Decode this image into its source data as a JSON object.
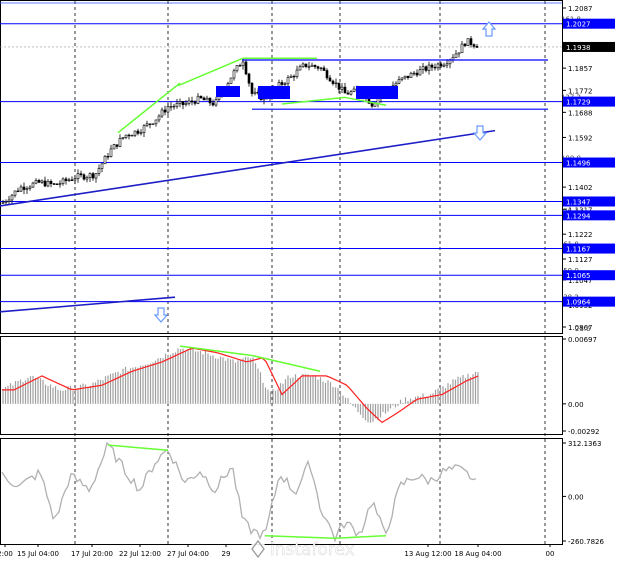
{
  "watermark": "instaforex",
  "chart_data": [
    {
      "type": "candlestick",
      "panel": "price",
      "ylim": [
        1.0867,
        1.2087
      ],
      "y_ticks": [
        "1.2087",
        "1.1938",
        "1.1857",
        "1.1772",
        "1.1688",
        "1.1592",
        "1.1497",
        "1.1402",
        "1.1317",
        "1.1222",
        "1.1127",
        "1.1047",
        "1.0952",
        "1.0867"
      ],
      "current_price": "1.1938",
      "horizontal_levels": [
        {
          "value": 1.2027,
          "label": "1.2027",
          "fib": "161.8"
        },
        {
          "value": 1.1729,
          "label": "1.1729",
          "fib": "127.2"
        },
        {
          "value": 1.1496,
          "label": "1.1496",
          "fib": "100.0"
        },
        {
          "value": 1.1347,
          "label": "1.1347",
          "fib": ""
        },
        {
          "value": 1.1294,
          "label": "1.1294",
          "fib": "76.4"
        },
        {
          "value": 1.1167,
          "label": "1.1167",
          "fib": "61.8"
        },
        {
          "value": 1.1065,
          "label": "1.1065",
          "fib": "50.0"
        },
        {
          "value": 1.0964,
          "label": "1.0964",
          "fib": "38.2"
        }
      ],
      "partial_fib_label": "23.6",
      "colors": {
        "level_line": "#0000ff",
        "trend": "#1e1ec8",
        "divergence": "#66ff33",
        "arrow": "#6699ff",
        "box": "#0000ff"
      }
    },
    {
      "type": "bar",
      "panel": "MACD",
      "y_ticks": [
        "0.00697",
        "0.00",
        "-0.00292"
      ],
      "colors": {
        "histogram": "#a0a0a0",
        "signal": "#ff2020"
      }
    },
    {
      "type": "line",
      "panel": "CCI",
      "y_ticks": [
        "312.1363",
        "0.00",
        "-260.7826"
      ],
      "colors": {
        "line": "#b0b0b0"
      }
    }
  ],
  "x_axis": {
    "tick_labels": [
      "2:00",
      "15 Jul 04:00",
      "17 Jul 20:00",
      "22 Jul 12:00",
      "27 Jul 04:00",
      "29",
      "13 Aug 12:00",
      "18 Aug 04:00",
      "00"
    ]
  }
}
